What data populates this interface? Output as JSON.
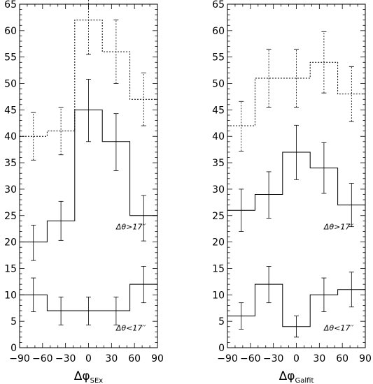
{
  "chart_data": [
    {
      "type": "histogram",
      "xlabel": {
        "base": "Δφ",
        "sub": "SEx"
      },
      "xlim": [
        -90,
        90
      ],
      "ylim": [
        0,
        65
      ],
      "x_ticks": [
        -90,
        -60,
        -30,
        0,
        30,
        60,
        90
      ],
      "y_ticks": [
        0,
        5,
        10,
        15,
        20,
        25,
        30,
        35,
        40,
        45,
        50,
        55,
        60,
        65
      ],
      "bin_edges": [
        -90,
        -54,
        -18,
        18,
        54,
        90
      ],
      "bin_centers": [
        -72,
        -36,
        0,
        36,
        72
      ],
      "series": [
        {
          "style": "dotted",
          "values": [
            40,
            41,
            62,
            56,
            47
          ],
          "errors": [
            [
              35.5,
              44.5
            ],
            [
              36.5,
              45.5
            ],
            [
              55.5,
              68
            ],
            [
              50,
              62
            ],
            [
              42,
              52
            ]
          ]
        },
        {
          "style": "solid",
          "label": "Δθ>17′′",
          "values": [
            20,
            24,
            45,
            39,
            25
          ],
          "errors": [
            [
              16.5,
              23.2
            ],
            [
              20.3,
              27.7
            ],
            [
              39,
              50.8
            ],
            [
              33.5,
              44.3
            ],
            [
              20.2,
              28.8
            ]
          ]
        },
        {
          "style": "solid",
          "label": "Δθ<17′′",
          "values": [
            10,
            7,
            7,
            7,
            12
          ],
          "errors": [
            [
              6.8,
              13.2
            ],
            [
              4.3,
              9.6
            ],
            [
              4.3,
              9.6
            ],
            [
              4.3,
              9.6
            ],
            [
              8.5,
              15.4
            ]
          ]
        }
      ]
    },
    {
      "type": "histogram",
      "xlabel": {
        "base": "Δφ",
        "sub": "Galfit"
      },
      "xlim": [
        -90,
        90
      ],
      "ylim": [
        0,
        65
      ],
      "x_ticks": [
        -90,
        -60,
        -30,
        0,
        30,
        60,
        90
      ],
      "y_ticks": [
        0,
        5,
        10,
        15,
        20,
        25,
        30,
        35,
        40,
        45,
        50,
        55,
        60,
        65
      ],
      "bin_edges": [
        -90,
        -54,
        -18,
        18,
        54,
        90
      ],
      "bin_centers": [
        -72,
        -36,
        0,
        36,
        72
      ],
      "series": [
        {
          "style": "dotted",
          "values": [
            42,
            51,
            51,
            54,
            48
          ],
          "errors": [
            [
              37.2,
              46.6
            ],
            [
              45.5,
              56.5
            ],
            [
              45.5,
              56.5
            ],
            [
              48.2,
              59.8
            ],
            [
              42.8,
              53.2
            ]
          ]
        },
        {
          "style": "solid",
          "label": "Δθ>17′′",
          "values": [
            26,
            29,
            37,
            34,
            27
          ],
          "errors": [
            [
              22,
              30
            ],
            [
              24.5,
              33.3
            ],
            [
              31.8,
              42.1
            ],
            [
              29.2,
              38.8
            ],
            [
              22.9,
              31.1
            ]
          ]
        },
        {
          "style": "solid",
          "label": "Δθ<17′′",
          "values": [
            6,
            12,
            4,
            10,
            11
          ],
          "errors": [
            [
              3.5,
              8.5
            ],
            [
              8.5,
              15.4
            ],
            [
              2,
              6
            ],
            [
              6.8,
              13.2
            ],
            [
              7.7,
              14.3
            ]
          ]
        }
      ]
    }
  ]
}
